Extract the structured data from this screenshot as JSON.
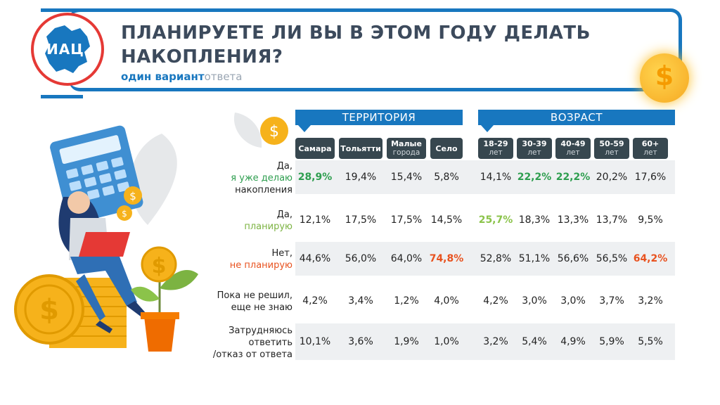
{
  "logo": {
    "text": "ИАЦ"
  },
  "title": "ПЛАНИРУЕТЕ ЛИ ВЫ В ЭТОМ ГОДУ ДЕЛАТЬ НАКОПЛЕНИЯ?",
  "subtitle": {
    "part1": "один вариант",
    "part2": "ответа"
  },
  "colors": {
    "brand_blue": "#1877bf",
    "dark_header": "#37474f",
    "highlight_green": "#2e9e4f",
    "highlight_olive": "#8bc34a",
    "highlight_red": "#e8521f",
    "row_bg": "#eef0f2"
  },
  "chart_data": {
    "type": "table",
    "groups": [
      {
        "label": "ТЕРРИТОРИЯ",
        "columns": [
          {
            "label": "Самара",
            "sub": ""
          },
          {
            "label": "Тольятти",
            "sub": ""
          },
          {
            "label": "Малые",
            "sub": "города"
          },
          {
            "label": "Село",
            "sub": ""
          }
        ]
      },
      {
        "label": "ВОЗРАСТ",
        "columns": [
          {
            "label": "18-29",
            "sub": "лет"
          },
          {
            "label": "30-39",
            "sub": "лет"
          },
          {
            "label": "40-49",
            "sub": "лет"
          },
          {
            "label": "50-59",
            "sub": "лет"
          },
          {
            "label": "60+",
            "sub": "лет"
          }
        ]
      }
    ],
    "rows": [
      {
        "label_lines": [
          "Да,",
          "я уже делаю",
          "накопления"
        ],
        "accent_line": 1,
        "accent": "green",
        "values": [
          "28,9%",
          "19,4%",
          "15,4%",
          "5,8%",
          "14,1%",
          "22,2%",
          "22,2%",
          "20,2%",
          "17,6%"
        ],
        "highlight": [
          0,
          5,
          6
        ],
        "highlight_color": "green"
      },
      {
        "label_lines": [
          "Да,",
          "планирую"
        ],
        "accent_line": 1,
        "accent": "olive",
        "values": [
          "12,1%",
          "17,5%",
          "17,5%",
          "14,5%",
          "25,7%",
          "18,3%",
          "13,3%",
          "13,7%",
          "9,5%"
        ],
        "highlight": [
          4
        ],
        "highlight_color": "olive"
      },
      {
        "label_lines": [
          "Нет,",
          "не планирую"
        ],
        "accent_line": 1,
        "accent": "red",
        "values": [
          "44,6%",
          "56,0%",
          "64,0%",
          "74,8%",
          "52,8%",
          "51,1%",
          "56,6%",
          "56,5%",
          "64,2%"
        ],
        "highlight": [
          3,
          8
        ],
        "highlight_color": "red"
      },
      {
        "label_lines": [
          "Пока не решил,",
          "еще не знаю"
        ],
        "accent_line": -1,
        "accent": "",
        "values": [
          "4,2%",
          "3,4%",
          "1,2%",
          "4,0%",
          "4,2%",
          "3,0%",
          "3,0%",
          "3,7%",
          "3,2%"
        ],
        "highlight": [],
        "highlight_color": ""
      },
      {
        "label_lines": [
          "Затрудняюсь",
          "ответить",
          "/отказ от ответа"
        ],
        "accent_line": -1,
        "accent": "",
        "values": [
          "10,1%",
          "3,6%",
          "1,9%",
          "1,0%",
          "3,2%",
          "5,4%",
          "4,9%",
          "5,9%",
          "5,5%"
        ],
        "highlight": [],
        "highlight_color": ""
      }
    ]
  }
}
